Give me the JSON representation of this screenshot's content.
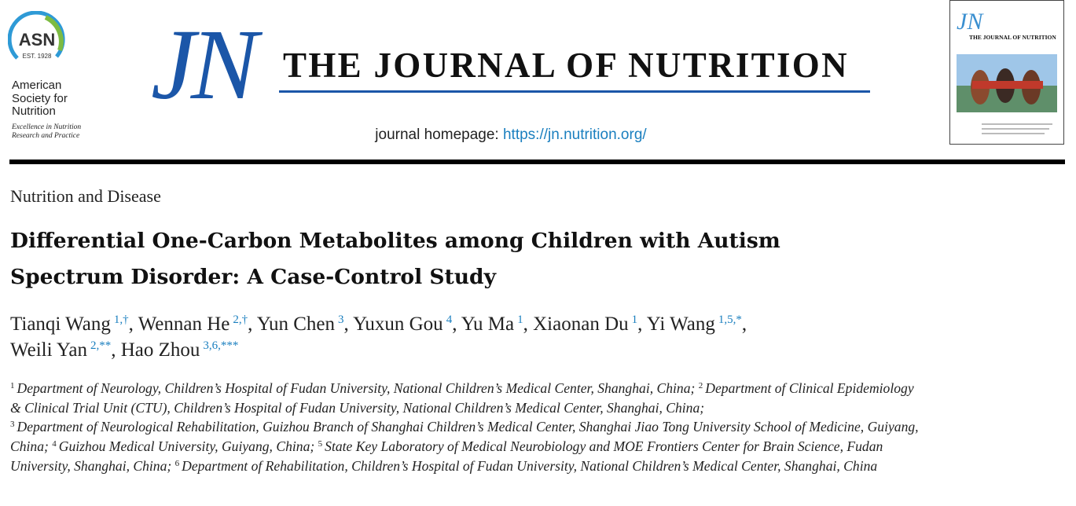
{
  "header": {
    "society_logo": "ASN",
    "society_est": "EST. 1928",
    "society_name": "American Society for Nutrition",
    "society_tagline": "Excellence in Nutrition Research and Practice",
    "journal_abbrev": "JN",
    "journal_title": "THE JOURNAL OF NUTRITION",
    "homepage_label": "journal homepage:",
    "homepage_url": "https://jn.nutrition.org/",
    "cover_abbrev": "JN",
    "cover_title": "THE JOURNAL OF NUTRITION"
  },
  "article": {
    "section": "Nutrition and Disease",
    "title": "Differential One-Carbon Metabolites among Children with Autism Spectrum Disorder: A Case-Control Study",
    "separator": ",",
    "authors": [
      {
        "name": "Tianqi Wang",
        "affil": "1,†"
      },
      {
        "name": "Wennan He",
        "affil": "2,†"
      },
      {
        "name": "Yun Chen",
        "affil": "3"
      },
      {
        "name": "Yuxun Gou",
        "affil": "4"
      },
      {
        "name": "Yu Ma",
        "affil": "1"
      },
      {
        "name": "Xiaonan Du",
        "affil": "1"
      },
      {
        "name": "Yi Wang",
        "affil": "1,5,*"
      },
      {
        "name": "Weili Yan",
        "affil": "2,**"
      },
      {
        "name": "Hao Zhou",
        "affil": "3,6,***"
      }
    ],
    "affiliations": [
      {
        "num": "1",
        "text": "Department of Neurology, Children’s Hospital of Fudan University, National Children’s Medical Center, Shanghai, China;"
      },
      {
        "num": "2",
        "text": "Department of Clinical Epidemiology & Clinical Trial Unit (CTU), Children’s Hospital of Fudan University, National Children’s Medical Center, Shanghai, China;"
      },
      {
        "num": "3",
        "text": "Department of Neurological Rehabilitation, Guizhou Branch of Shanghai Children’s Medical Center, Shanghai Jiao Tong University School of Medicine, Guiyang, China;"
      },
      {
        "num": "4",
        "text": "Guizhou Medical University, Guiyang, China;"
      },
      {
        "num": "5",
        "text": "State Key Laboratory of Medical Neurobiology and MOE Frontiers Center for Brain Science, Fudan University, Shanghai, China;"
      },
      {
        "num": "6",
        "text": "Department of Rehabilitation, Children’s Hospital of Fudan University, National Children’s Medical Center, Shanghai, China"
      }
    ]
  }
}
